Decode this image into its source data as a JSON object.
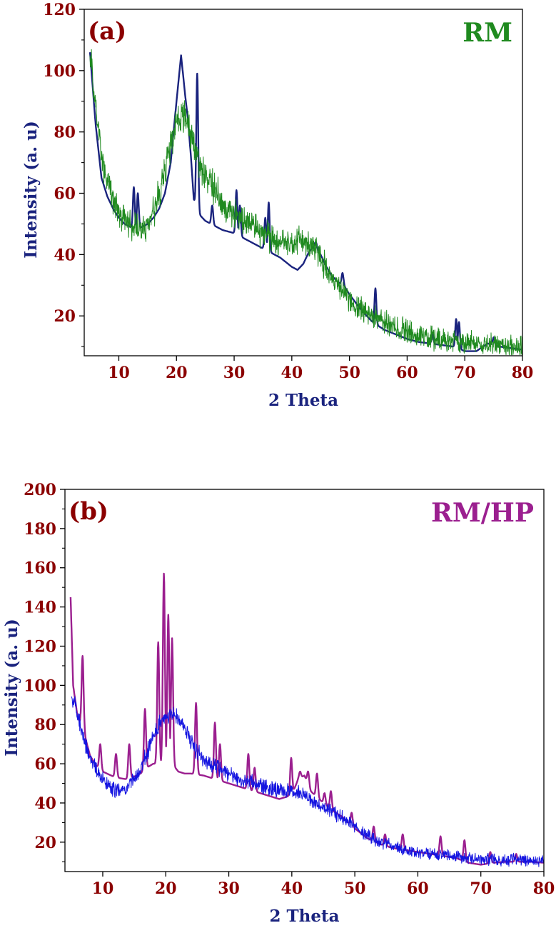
{
  "chart_data": [
    {
      "type": "line",
      "panel_label": "(a)",
      "sample_label": "RM",
      "xlabel": "2 Theta",
      "ylabel": "Intensity (a. u)",
      "xlim": [
        4,
        80
      ],
      "ylim": [
        7,
        120
      ],
      "x_ticks": [
        10,
        20,
        30,
        40,
        50,
        60,
        70,
        80
      ],
      "y_ticks": [
        20,
        40,
        60,
        80,
        100,
        120
      ],
      "grid": false,
      "colors": {
        "tick_labels": "#8b0000",
        "xlabel": "#1a237e",
        "ylabel": "#1a237e",
        "sample_label": "#1f8a1f",
        "panel_label": "#8b0000"
      },
      "series": [
        {
          "color": "#1a237e",
          "noisy": false,
          "base": [
            [
              5,
              106
            ],
            [
              6,
              82
            ],
            [
              7,
              65
            ],
            [
              8,
              59
            ],
            [
              9,
              55
            ],
            [
              10,
              52
            ],
            [
              11,
              50
            ],
            [
              12,
              49
            ],
            [
              13,
              48.5
            ],
            [
              14,
              49
            ],
            [
              15,
              50
            ],
            [
              16,
              52
            ],
            [
              17,
              55
            ],
            [
              18,
              60
            ],
            [
              19,
              70
            ],
            [
              20,
              90
            ],
            [
              20.8,
              105
            ],
            [
              21.5,
              92
            ],
            [
              22,
              84
            ],
            [
              22.5,
              72
            ],
            [
              23,
              58
            ],
            [
              24,
              53
            ],
            [
              25,
              51
            ],
            [
              26,
              50
            ],
            [
              28,
              48
            ],
            [
              30,
              47
            ],
            [
              32,
              45
            ],
            [
              34,
              43
            ],
            [
              36,
              41
            ],
            [
              38,
              39
            ],
            [
              40,
              36
            ],
            [
              41,
              35
            ],
            [
              42,
              37
            ],
            [
              43,
              41
            ],
            [
              44,
              43
            ],
            [
              45,
              40
            ],
            [
              46,
              36
            ],
            [
              47,
              33
            ],
            [
              48,
              31
            ],
            [
              49,
              30
            ],
            [
              50,
              27
            ],
            [
              52,
              22
            ],
            [
              54,
              18
            ],
            [
              56,
              15.5
            ],
            [
              58,
              14
            ],
            [
              60,
              12.5
            ],
            [
              62,
              11.5
            ],
            [
              64,
              11
            ],
            [
              66,
              10.5
            ],
            [
              68,
              10
            ],
            [
              70,
              8.5
            ],
            [
              72,
              8.5
            ],
            [
              74,
              11
            ],
            [
              76,
              10
            ],
            [
              78,
              9.5
            ],
            [
              80,
              9
            ]
          ],
          "spikes": [
            [
              12.6,
              62
            ],
            [
              13.3,
              60
            ],
            [
              23.6,
              99
            ],
            [
              26.2,
              56
            ],
            [
              30.4,
              61
            ],
            [
              31.0,
              56
            ],
            [
              35.4,
              52
            ],
            [
              36.0,
              57
            ],
            [
              44.2,
              44
            ],
            [
              48.8,
              34
            ],
            [
              54.5,
              29
            ],
            [
              64.4,
              14
            ],
            [
              68.5,
              19
            ],
            [
              69.0,
              18
            ],
            [
              75.0,
              13
            ]
          ]
        },
        {
          "color": "#1f8a1f",
          "noisy": true,
          "noise": 5,
          "base": [
            [
              5,
              105
            ],
            [
              6,
              88
            ],
            [
              7,
              72
            ],
            [
              8,
              63
            ],
            [
              9,
              58
            ],
            [
              10,
              54
            ],
            [
              11,
              51
            ],
            [
              12,
              50
            ],
            [
              13,
              49
            ],
            [
              14,
              48
            ],
            [
              15,
              50
            ],
            [
              16,
              54
            ],
            [
              17,
              60
            ],
            [
              18,
              68
            ],
            [
              19,
              76
            ],
            [
              20,
              82
            ],
            [
              21,
              86
            ],
            [
              22,
              82
            ],
            [
              23,
              76
            ],
            [
              24,
              70
            ],
            [
              25,
              66
            ],
            [
              26,
              63
            ],
            [
              28,
              57
            ],
            [
              30,
              53
            ],
            [
              32,
              50
            ],
            [
              34,
              48
            ],
            [
              36,
              46
            ],
            [
              38,
              44
            ],
            [
              40,
              44
            ],
            [
              42,
              45
            ],
            [
              44,
              42
            ],
            [
              46,
              35
            ],
            [
              48,
              29
            ],
            [
              50,
              25
            ],
            [
              52,
              22
            ],
            [
              54,
              20
            ],
            [
              56,
              18
            ],
            [
              58,
              16
            ],
            [
              60,
              15
            ],
            [
              62,
              14
            ],
            [
              64,
              13
            ],
            [
              66,
              12.5
            ],
            [
              68,
              12
            ],
            [
              70,
              11.5
            ],
            [
              72,
              11
            ],
            [
              74,
              11
            ],
            [
              76,
              10.5
            ],
            [
              78,
              10
            ],
            [
              80,
              10
            ]
          ]
        }
      ]
    },
    {
      "type": "line",
      "panel_label": "(b)",
      "sample_label": "RM/HP",
      "xlabel": "2 Theta",
      "ylabel": "Intensity (a. u)",
      "xlim": [
        4,
        80
      ],
      "ylim": [
        5,
        200
      ],
      "x_ticks": [
        10,
        20,
        30,
        40,
        50,
        60,
        70,
        80
      ],
      "y_ticks": [
        20,
        40,
        60,
        80,
        100,
        120,
        140,
        160,
        180,
        200
      ],
      "grid": false,
      "colors": {
        "tick_labels": "#8b0000",
        "xlabel": "#1a237e",
        "ylabel": "#1a237e",
        "sample_label": "#9b1f8f",
        "panel_label": "#8b0000"
      },
      "series": [
        {
          "color": "#9b1f8f",
          "noisy": false,
          "base": [
            [
              4.9,
              145
            ],
            [
              5.3,
              100
            ],
            [
              6,
              84
            ],
            [
              7,
              76
            ],
            [
              8,
              64
            ],
            [
              9,
              59
            ],
            [
              10,
              56
            ],
            [
              12,
              53
            ],
            [
              14,
              52
            ],
            [
              16,
              55
            ],
            [
              17,
              58
            ],
            [
              18,
              60
            ],
            [
              19,
              60
            ],
            [
              20,
              60
            ],
            [
              21,
              60
            ],
            [
              22,
              56
            ],
            [
              23,
              55
            ],
            [
              24,
              55
            ],
            [
              26,
              54
            ],
            [
              28,
              52
            ],
            [
              30,
              50
            ],
            [
              32,
              48
            ],
            [
              34,
              46
            ],
            [
              36,
              44
            ],
            [
              38,
              42
            ],
            [
              40,
              44
            ],
            [
              41,
              52
            ],
            [
              42,
              54
            ],
            [
              43,
              46
            ],
            [
              44,
              43
            ],
            [
              46,
              37
            ],
            [
              48,
              33
            ],
            [
              50,
              27
            ],
            [
              52,
              22
            ],
            [
              54,
              19
            ],
            [
              56,
              17
            ],
            [
              58,
              16
            ],
            [
              60,
              15
            ],
            [
              62,
              14
            ],
            [
              64,
              13
            ],
            [
              66,
              12
            ],
            [
              68,
              9.5
            ],
            [
              70,
              8.5
            ],
            [
              72,
              9.5
            ],
            [
              74,
              10
            ],
            [
              76,
              10
            ],
            [
              78,
              10
            ],
            [
              80,
              9.5
            ]
          ],
          "spikes": [
            [
              6.8,
              115
            ],
            [
              9.6,
              70
            ],
            [
              12.1,
              65
            ],
            [
              14.2,
              70
            ],
            [
              16.7,
              88
            ],
            [
              18.8,
              122
            ],
            [
              19.7,
              157
            ],
            [
              20.4,
              136
            ],
            [
              21.0,
              124
            ],
            [
              24.8,
              91
            ],
            [
              27.8,
              81
            ],
            [
              28.6,
              70
            ],
            [
              33.1,
              65
            ],
            [
              34.1,
              58
            ],
            [
              39.9,
              63
            ],
            [
              41.3,
              56
            ],
            [
              42.6,
              56
            ],
            [
              44.0,
              55
            ],
            [
              45.2,
              45
            ],
            [
              46.2,
              46
            ],
            [
              49.5,
              35
            ],
            [
              53.0,
              28
            ],
            [
              54.8,
              24
            ],
            [
              57.6,
              24
            ],
            [
              63.6,
              23
            ],
            [
              67.4,
              21
            ],
            [
              71.5,
              15
            ],
            [
              75.6,
              14
            ]
          ]
        },
        {
          "color": "#1414e0",
          "noisy": true,
          "noise": 4,
          "base": [
            [
              5,
              95
            ],
            [
              6,
              86
            ],
            [
              7,
              72
            ],
            [
              8,
              63
            ],
            [
              9,
              57
            ],
            [
              10,
              52
            ],
            [
              11,
              48
            ],
            [
              12,
              47
            ],
            [
              13,
              47
            ],
            [
              14,
              48
            ],
            [
              15,
              52
            ],
            [
              16,
              58
            ],
            [
              17,
              65
            ],
            [
              18,
              74
            ],
            [
              19,
              80
            ],
            [
              20,
              84
            ],
            [
              21,
              85
            ],
            [
              22,
              83
            ],
            [
              23,
              78
            ],
            [
              24,
              72
            ],
            [
              25,
              66
            ],
            [
              26,
              62
            ],
            [
              28,
              58
            ],
            [
              30,
              55
            ],
            [
              32,
              52
            ],
            [
              34,
              50
            ],
            [
              36,
              48
            ],
            [
              38,
              47
            ],
            [
              40,
              46
            ],
            [
              42,
              44
            ],
            [
              44,
              40
            ],
            [
              46,
              36
            ],
            [
              48,
              33
            ],
            [
              50,
              28
            ],
            [
              52,
              23
            ],
            [
              54,
              20
            ],
            [
              56,
              18
            ],
            [
              58,
              16
            ],
            [
              60,
              15
            ],
            [
              62,
              14
            ],
            [
              64,
              13.5
            ],
            [
              66,
              13
            ],
            [
              68,
              12
            ],
            [
              70,
              11.5
            ],
            [
              72,
              11
            ],
            [
              74,
              11
            ],
            [
              76,
              11
            ],
            [
              78,
              10.5
            ],
            [
              80,
              10.5
            ]
          ]
        }
      ]
    }
  ]
}
